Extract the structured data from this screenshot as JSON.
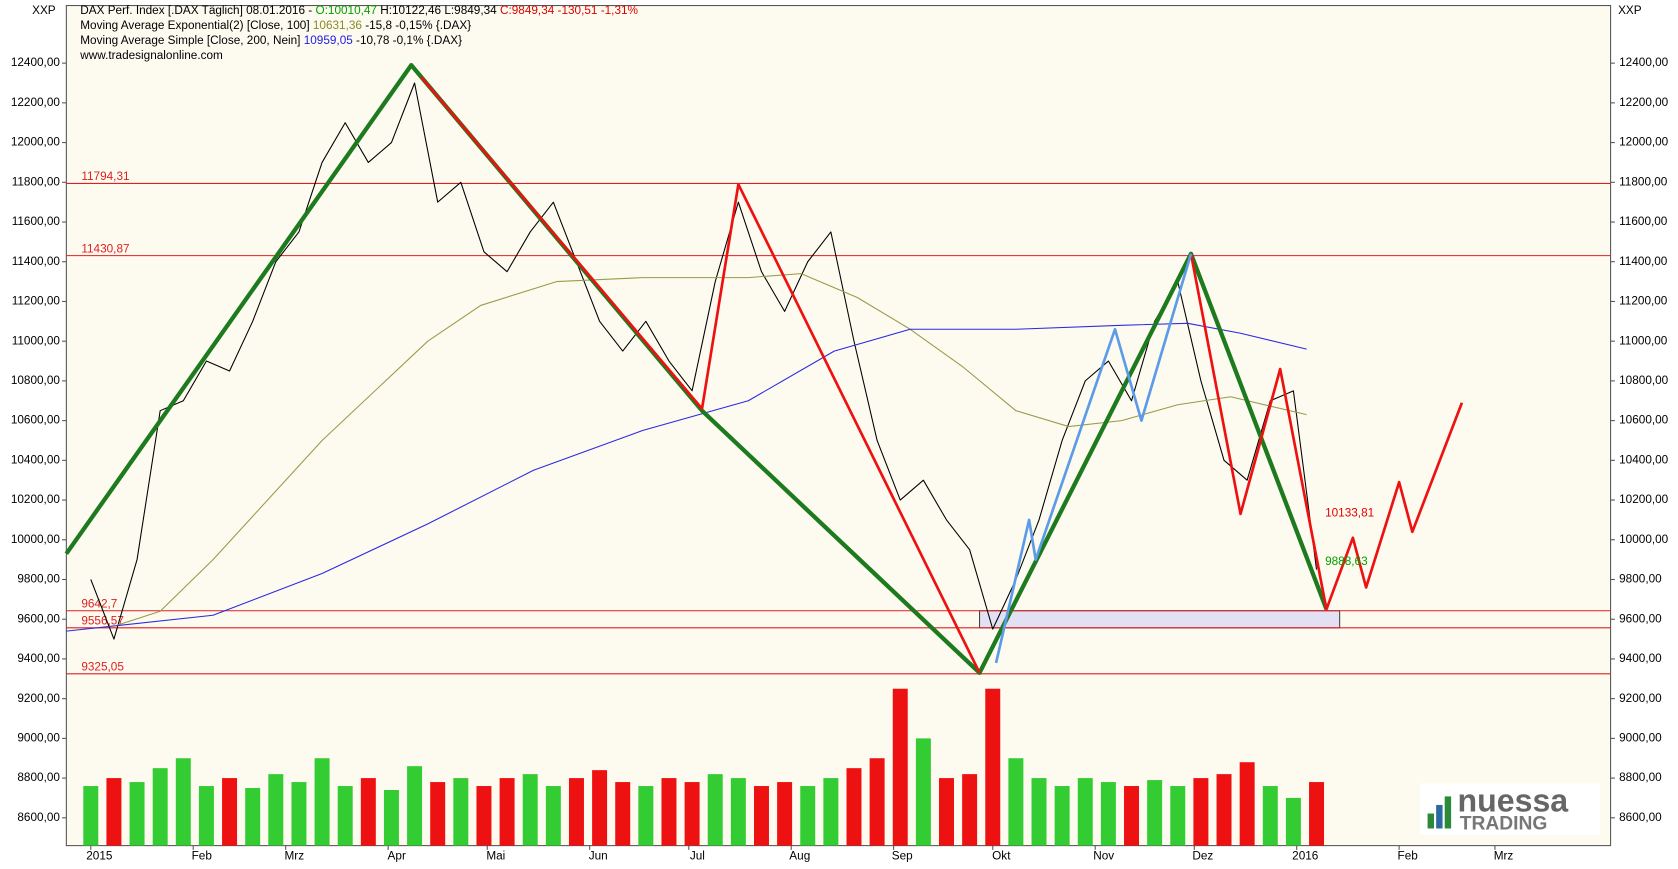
{
  "chart_data": {
    "type": "line",
    "axis_caption_left": "XXP",
    "axis_caption_right": "XXP",
    "header": [
      [
        {
          "text": "DAX Perf. Index [.DAX  Täglich] 08.01.2016 - ",
          "color": "#000000"
        },
        {
          "text": "O:10010,47",
          "color": "#00a000"
        },
        {
          "text": " H:10122,46 L:9849,34 ",
          "color": "#000000"
        },
        {
          "text": "C:9849,34 -130,51 -1,31%",
          "color": "#e00000"
        }
      ],
      [
        {
          "text": "Moving Average Exponential(2) [Close, 100] ",
          "color": "#000000"
        },
        {
          "text": "10631,36",
          "color": "#8a8a2a"
        },
        {
          "text": " -15,8 -0,15% {.DAX}",
          "color": "#000000"
        }
      ],
      [
        {
          "text": "Moving Average Simple [Close, 200, Nein] ",
          "color": "#000000"
        },
        {
          "text": "10959,05",
          "color": "#2020e0"
        },
        {
          "text": " -10,78 -0,1% {.DAX}",
          "color": "#000000"
        }
      ],
      [
        {
          "text": "www.tradesignalonline.com",
          "color": "#000000"
        }
      ]
    ],
    "xlim": [
      -7.4,
      460
    ],
    "ylim": [
      8460,
      12690
    ],
    "xticks": [
      {
        "value": 0,
        "label": "2015"
      },
      {
        "value": 31,
        "label": "Feb"
      },
      {
        "value": 59,
        "label": "Mrz"
      },
      {
        "value": 90,
        "label": "Apr"
      },
      {
        "value": 120,
        "label": "Mai"
      },
      {
        "value": 151,
        "label": "Jun"
      },
      {
        "value": 181,
        "label": "Jul"
      },
      {
        "value": 212,
        "label": "Aug"
      },
      {
        "value": 243,
        "label": "Sep"
      },
      {
        "value": 273,
        "label": "Okt"
      },
      {
        "value": 304,
        "label": "Nov"
      },
      {
        "value": 334,
        "label": "Dez"
      },
      {
        "value": 365,
        "label": "2016"
      },
      {
        "value": 396,
        "label": "Feb"
      },
      {
        "value": 425,
        "label": "Mrz"
      }
    ],
    "yticks": [
      {
        "value": 8600,
        "label": "8600,00"
      },
      {
        "value": 8800,
        "label": "8800,00"
      },
      {
        "value": 9000,
        "label": "9000,00"
      },
      {
        "value": 9200,
        "label": "9200,00"
      },
      {
        "value": 9400,
        "label": "9400,00"
      },
      {
        "value": 9600,
        "label": "9600,00"
      },
      {
        "value": 9800,
        "label": "9800,00"
      },
      {
        "value": 10000,
        "label": "10000,00"
      },
      {
        "value": 10200,
        "label": "10200,00"
      },
      {
        "value": 10400,
        "label": "10400,00"
      },
      {
        "value": 10600,
        "label": "10600,00"
      },
      {
        "value": 10800,
        "label": "10800,00"
      },
      {
        "value": 11000,
        "label": "11000,00"
      },
      {
        "value": 11200,
        "label": "11200,00"
      },
      {
        "value": 11400,
        "label": "11400,00"
      },
      {
        "value": 11600,
        "label": "11600,00"
      },
      {
        "value": 11800,
        "label": "11800,00"
      },
      {
        "value": 12000,
        "label": "12000,00"
      },
      {
        "value": 12200,
        "label": "12200,00"
      },
      {
        "value": 12400,
        "label": "12400,00"
      }
    ],
    "price": {
      "color": "#000000",
      "x": [
        0,
        7,
        14,
        21,
        28,
        35,
        42,
        49,
        56,
        63,
        70,
        77,
        84,
        91,
        98,
        105,
        112,
        119,
        126,
        133,
        140,
        147,
        154,
        161,
        168,
        175,
        182,
        189,
        196,
        203,
        210,
        217,
        224,
        231,
        238,
        245,
        252,
        259,
        266,
        273,
        280,
        287,
        294,
        301,
        308,
        315,
        322,
        329,
        336,
        343,
        350,
        357,
        364,
        371
      ],
      "values": [
        9800,
        9500,
        9900,
        10650,
        10700,
        10900,
        10850,
        11100,
        11400,
        11550,
        11900,
        12100,
        11900,
        12000,
        12300,
        11700,
        11800,
        11450,
        11350,
        11550,
        11700,
        11400,
        11100,
        10950,
        11100,
        10900,
        10750,
        11300,
        11700,
        11350,
        11150,
        11400,
        11550,
        11000,
        10500,
        10200,
        10300,
        10100,
        9950,
        9550,
        9800,
        10100,
        10500,
        10800,
        10900,
        10700,
        11100,
        11300,
        10800,
        10400,
        10300,
        10700,
        10750,
        9850
      ]
    },
    "volume": {
      "up_color": "#33cc33",
      "down_color": "#ee1111",
      "values": [
        8760,
        8800,
        8780,
        8850,
        8900,
        8760,
        8800,
        8750,
        8820,
        8780,
        8900,
        8760,
        8800,
        8740,
        8860,
        8780,
        8800,
        8760,
        8800,
        8820,
        8760,
        8800,
        8840,
        8780,
        8760,
        8800,
        8780,
        8820,
        8800,
        8760,
        8780,
        8760,
        8800,
        8850,
        8900,
        9250,
        9000,
        8800,
        8820,
        9250,
        8900,
        8800,
        8760,
        8800,
        8780,
        8760,
        8790,
        8760,
        8800,
        8820,
        8880,
        8760,
        8700,
        8780
      ]
    },
    "series": [
      {
        "color": "#9a9a4a",
        "width": 1,
        "x": [
          8,
          21,
          37,
          70,
          102,
          118,
          141,
          167,
          199,
          215,
          232,
          248,
          264,
          280,
          296,
          312,
          329,
          345,
          368
        ],
        "values": [
          9570,
          9640,
          9900,
          10500,
          11000,
          11180,
          11300,
          11320,
          11320,
          11340,
          11220,
          11060,
          10870,
          10650,
          10570,
          10600,
          10680,
          10720,
          10630
        ]
      },
      {
        "color": "#2a2ae0",
        "width": 1,
        "x": [
          -7.4,
          37,
          70,
          102,
          134,
          167,
          199,
          225,
          248,
          280,
          312,
          332,
          348,
          368
        ],
        "values": [
          9540,
          9620,
          9830,
          10080,
          10350,
          10550,
          10700,
          10950,
          11060,
          11060,
          11080,
          11090,
          11040,
          10960
        ]
      },
      {
        "color": "#1e7a1e",
        "width": 4,
        "x": [
          -7.4,
          97,
          185,
          269,
          333,
          374
        ],
        "values": [
          9930,
          12390,
          10650,
          9330,
          11440,
          9650
        ]
      },
      {
        "color": "#ee1111",
        "width": 2.5,
        "x": [
          100,
          185,
          196,
          269
        ],
        "values": [
          12330,
          10660,
          11790,
          9330
        ]
      },
      {
        "color": "#ee1111",
        "width": 2.5,
        "x": [
          333,
          348,
          360,
          374,
          382,
          386,
          396,
          400,
          415
        ],
        "values": [
          11440,
          10130,
          10860,
          9650,
          10010,
          9760,
          10290,
          10040,
          10690
        ]
      },
      {
        "color": "#5b9be8",
        "width": 2.5,
        "x": [
          274,
          284,
          286,
          310,
          318,
          333
        ],
        "values": [
          9380,
          10100,
          9900,
          11060,
          10600,
          11440
        ]
      }
    ],
    "levels": {
      "color": "#e02020",
      "items": [
        {
          "value": 11794.31,
          "label": "11794,31"
        },
        {
          "value": 11430.87,
          "label": "11430,87"
        },
        {
          "value": 9642.7,
          "label": "9642,7"
        },
        {
          "value": 9556.57,
          "label": "9556,57"
        },
        {
          "value": 9325.05,
          "label": "9325,05"
        }
      ]
    },
    "zone": {
      "x": [
        269,
        378
      ],
      "y": [
        9556.57,
        9642.7
      ],
      "color": "#e4e0f4"
    },
    "annotations": [
      {
        "value": 10133.81,
        "label": "10133,81",
        "color": "#e00000"
      },
      {
        "value": 9888.63,
        "label": "9888,63",
        "color": "#00a000"
      }
    ],
    "logo": {
      "line1": "nuessa",
      "line2": "TRADING"
    }
  }
}
